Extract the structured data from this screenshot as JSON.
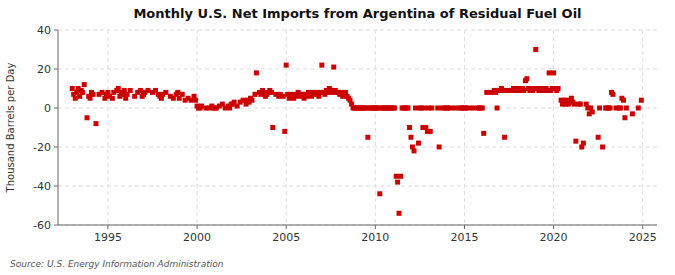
{
  "chart_data": {
    "type": "scatter",
    "title": "Monthly U.S. Net Imports from Argentina of Residual Fuel Oil",
    "ylabel": "Thousand Barrels per Day",
    "source": "Source: U.S. Energy Information Administration",
    "xlim": [
      1992.2,
      2025.8
    ],
    "ylim": [
      -60,
      40
    ],
    "xticks": [
      1995,
      2000,
      2005,
      2010,
      2015,
      2020,
      2025
    ],
    "yticks": [
      -60,
      -40,
      -20,
      0,
      20,
      40
    ],
    "grid": true,
    "color": "#CC0000",
    "marker": "square",
    "x": [
      1993.0,
      1993.08,
      1993.17,
      1993.25,
      1993.33,
      1993.42,
      1993.5,
      1993.58,
      1993.67,
      1993.83,
      1993.92,
      1994.0,
      1994.08,
      1994.17,
      1994.33,
      1994.5,
      1994.67,
      1994.83,
      1994.92,
      1995.0,
      1995.08,
      1995.25,
      1995.33,
      1995.5,
      1995.58,
      1995.67,
      1995.75,
      1995.83,
      1995.92,
      1996.0,
      1996.08,
      1996.25,
      1996.5,
      1996.67,
      1996.83,
      1996.92,
      1997.0,
      1997.08,
      1997.25,
      1997.5,
      1997.67,
      1997.83,
      1997.92,
      1998.0,
      1998.08,
      1998.25,
      1998.5,
      1998.67,
      1998.83,
      1998.92,
      1999.0,
      1999.17,
      1999.33,
      1999.5,
      1999.67,
      1999.83,
      1999.92,
      2000.0,
      2000.08,
      2000.17,
      2000.25,
      2000.5,
      2000.67,
      2000.83,
      2000.92,
      2001.0,
      2001.08,
      2001.25,
      2001.42,
      2001.58,
      2001.75,
      2001.83,
      2001.92,
      2002.0,
      2002.08,
      2002.25,
      2002.42,
      2002.58,
      2002.75,
      2002.83,
      2002.92,
      2003.0,
      2003.08,
      2003.25,
      2003.33,
      2003.5,
      2003.58,
      2003.67,
      2003.75,
      2003.83,
      2003.92,
      2004.0,
      2004.08,
      2004.17,
      2004.25,
      2004.42,
      2004.58,
      2004.67,
      2004.83,
      2004.92,
      2005.0,
      2005.08,
      2005.17,
      2005.25,
      2005.33,
      2005.42,
      2005.5,
      2005.58,
      2005.67,
      2005.75,
      2005.83,
      2005.92,
      2006.0,
      2006.08,
      2006.17,
      2006.25,
      2006.33,
      2006.42,
      2006.5,
      2006.58,
      2006.67,
      2006.75,
      2006.83,
      2006.92,
      2007.0,
      2007.08,
      2007.17,
      2007.25,
      2007.33,
      2007.42,
      2007.5,
      2007.58,
      2007.67,
      2007.75,
      2007.83,
      2007.92,
      2008.0,
      2008.08,
      2008.17,
      2008.25,
      2008.33,
      2008.42,
      2008.5,
      2008.58,
      2008.67,
      2008.75,
      2008.83,
      2008.92,
      2009.0,
      2009.08,
      2009.17,
      2009.25,
      2009.33,
      2009.42,
      2009.5,
      2009.58,
      2009.67,
      2009.75,
      2009.83,
      2009.92,
      2010.0,
      2010.08,
      2010.17,
      2010.25,
      2010.33,
      2010.42,
      2010.5,
      2010.58,
      2010.67,
      2010.75,
      2010.83,
      2010.92,
      2011.0,
      2011.08,
      2011.17,
      2011.25,
      2011.33,
      2011.42,
      2011.5,
      2011.58,
      2011.67,
      2011.75,
      2011.83,
      2011.92,
      2012.0,
      2012.08,
      2012.17,
      2012.25,
      2012.42,
      2012.5,
      2012.58,
      2012.67,
      2012.75,
      2012.83,
      2012.92,
      2013.0,
      2013.08,
      2013.17,
      2013.5,
      2013.58,
      2013.75,
      2013.92,
      2014.0,
      2014.08,
      2014.25,
      2014.5,
      2014.75,
      2014.83,
      2014.92,
      2015.0,
      2015.08,
      2015.25,
      2015.5,
      2015.75,
      2015.83,
      2015.92,
      2016.0,
      2016.08,
      2016.25,
      2016.5,
      2016.67,
      2016.75,
      2016.83,
      2016.92,
      2017.0,
      2017.08,
      2017.17,
      2017.25,
      2017.42,
      2017.5,
      2017.67,
      2017.75,
      2017.83,
      2017.92,
      2018.0,
      2018.08,
      2018.17,
      2018.25,
      2018.33,
      2018.42,
      2018.5,
      2018.58,
      2018.67,
      2018.75,
      2018.83,
      2018.92,
      2019.0,
      2019.08,
      2019.17,
      2019.25,
      2019.33,
      2019.42,
      2019.5,
      2019.58,
      2019.67,
      2019.75,
      2019.83,
      2019.92,
      2020.0,
      2020.08,
      2020.17,
      2020.25,
      2020.42,
      2020.5,
      2020.58,
      2020.67,
      2020.75,
      2020.83,
      2020.92,
      2021.0,
      2021.08,
      2021.17,
      2021.25,
      2021.42,
      2021.5,
      2021.58,
      2021.67,
      2021.83,
      2021.92,
      2022.0,
      2022.08,
      2022.17,
      2022.5,
      2022.58,
      2022.75,
      2022.92,
      2023.0,
      2023.08,
      2023.17,
      2023.25,
      2023.33,
      2023.5,
      2023.67,
      2023.75,
      2023.83,
      2023.92,
      2024.0,
      2024.08,
      2024.42,
      2024.75,
      2024.92
    ],
    "values": [
      10,
      7,
      5,
      8,
      10,
      6,
      9,
      8,
      12,
      -5,
      6,
      5,
      8,
      7,
      -8,
      7,
      8,
      5,
      7,
      8,
      6,
      5,
      8,
      9,
      10,
      6,
      8,
      7,
      9,
      5,
      7,
      9,
      6,
      8,
      9,
      6,
      7,
      8,
      9,
      8,
      9,
      7,
      6,
      5,
      7,
      8,
      6,
      5,
      7,
      8,
      5,
      7,
      4,
      5,
      4,
      6,
      4,
      1,
      0,
      0,
      1,
      0,
      0,
      1,
      0,
      0,
      0,
      1,
      2,
      0,
      1,
      0,
      2,
      2,
      3,
      1,
      3,
      4,
      2,
      4,
      3,
      5,
      4,
      7,
      18,
      8,
      7,
      9,
      8,
      6,
      7,
      8,
      9,
      8,
      -10,
      7,
      6,
      7,
      6,
      -12,
      22,
      7,
      5,
      7,
      6,
      5,
      7,
      6,
      8,
      7,
      6,
      7,
      5,
      7,
      6,
      8,
      7,
      6,
      8,
      7,
      8,
      7,
      6,
      8,
      22,
      8,
      7,
      9,
      8,
      10,
      9,
      8,
      21,
      9,
      8,
      8,
      7,
      8,
      6,
      7,
      8,
      6,
      5,
      4,
      2,
      0,
      0,
      0,
      0,
      0,
      0,
      0,
      0,
      0,
      0,
      -15,
      0,
      0,
      0,
      0,
      0,
      0,
      0,
      -44,
      0,
      0,
      0,
      0,
      0,
      0,
      0,
      0,
      0,
      0,
      -35,
      -38,
      -54,
      -35,
      0,
      0,
      0,
      0,
      0,
      -10,
      -15,
      -20,
      -22,
      0,
      -18,
      0,
      0,
      -10,
      0,
      -10,
      -12,
      0,
      -12,
      0,
      0,
      -20,
      0,
      0,
      0,
      0,
      0,
      0,
      0,
      0,
      0,
      0,
      0,
      0,
      0,
      0,
      0,
      0,
      0,
      -13,
      8,
      8,
      9,
      8,
      0,
      9,
      9,
      10,
      9,
      -15,
      9,
      9,
      9,
      10,
      9,
      10,
      9,
      10,
      9,
      10,
      9,
      14,
      15,
      10,
      9,
      10,
      9,
      10,
      30,
      10,
      9,
      10,
      9,
      10,
      9,
      10,
      9,
      18,
      9,
      10,
      18,
      10,
      9,
      10,
      4,
      2,
      4,
      2,
      4,
      2,
      3,
      5,
      3,
      2,
      -17,
      2,
      2,
      -20,
      -18,
      2,
      0,
      -3,
      0,
      -2,
      -15,
      0,
      -20,
      0,
      0,
      0,
      0,
      8,
      7,
      0,
      0,
      0,
      5,
      4,
      -5,
      0,
      -3,
      0,
      4
    ]
  }
}
